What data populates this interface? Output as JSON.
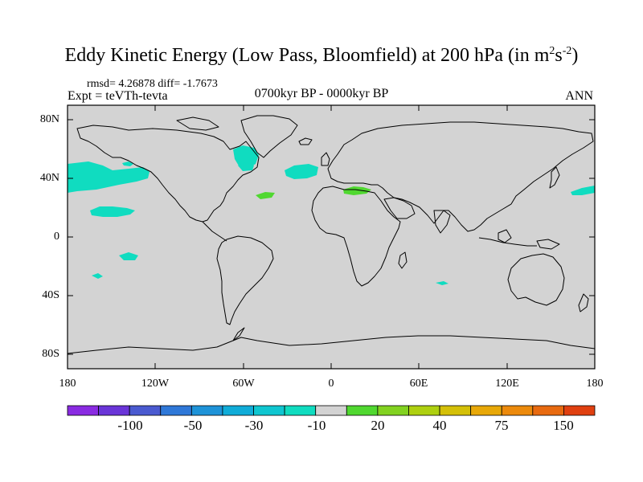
{
  "title": "Eddy Kinetic Energy (Low Pass, Bloomfield) at 200 hPa (in m",
  "title_sup1": "2",
  "title_mid": "s",
  "title_sup2": "-2",
  "title_end": ")",
  "stats": "rmsd= 4.26878  diff= -1.7673",
  "expt": "Expt = teVTh-tevta",
  "period": "0700kyr BP - 0000kyr BP",
  "season": "ANN",
  "map": {
    "lat_labels": [
      "80N",
      "40N",
      "0",
      "40S",
      "80S"
    ],
    "lon_labels": [
      "180",
      "120W",
      "60W",
      "0",
      "60E",
      "120E",
      "180"
    ],
    "land_color": "#d3d3d3",
    "coast_color": "#000000"
  },
  "colorbar": {
    "colors": [
      "#8a2be2",
      "#6a35d8",
      "#4a5ad0",
      "#2f78d8",
      "#1e93d8",
      "#10acd8",
      "#0fc6d0",
      "#10dcc0",
      "#d3d3d3",
      "#50d830",
      "#82d220",
      "#aed010",
      "#d4c008",
      "#e8a808",
      "#ec8a0c",
      "#e86a10",
      "#e04010"
    ],
    "labels": [
      "-100",
      "-50",
      "-30",
      "-10",
      "20",
      "40",
      "75",
      "150"
    ]
  },
  "anomaly_colors": {
    "negative_small": "#10dcc0",
    "positive_small": "#50d830"
  }
}
